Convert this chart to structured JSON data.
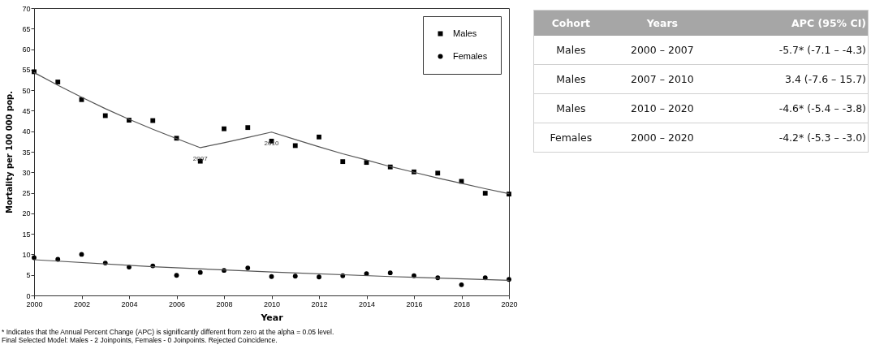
{
  "chart_data": [
    {
      "type": "scatter",
      "xlabel": "Year",
      "ylabel": "Mortality per 100 000 pop.",
      "xlim": [
        2000,
        2020
      ],
      "xticks": [
        2000,
        2002,
        2004,
        2006,
        2008,
        2010,
        2012,
        2014,
        2016,
        2018,
        2020
      ],
      "ylim": [
        0,
        70
      ],
      "yticks": [
        0,
        5,
        10,
        15,
        20,
        25,
        30,
        35,
        40,
        45,
        50,
        55,
        60,
        65,
        70
      ],
      "legend": "top right",
      "x": [
        2000,
        2001,
        2002,
        2003,
        2004,
        2005,
        2006,
        2007,
        2008,
        2009,
        2010,
        2011,
        2012,
        2013,
        2014,
        2015,
        2016,
        2017,
        2018,
        2019,
        2020
      ],
      "series": [
        {
          "name": "Males",
          "color": "#000000",
          "marker": "square",
          "values": [
            54.5,
            52,
            47.7,
            43.8,
            42.7,
            42.6,
            38.3,
            32.7,
            40.6,
            40.9,
            37.6,
            36.5,
            38.6,
            32.6,
            32.4,
            31.3,
            30.1,
            29.8,
            27.8,
            24.9,
            24.7
          ]
        },
        {
          "name": "Females",
          "color": "#000000",
          "marker": "circle",
          "values": [
            9.2,
            8.8,
            10.0,
            7.9,
            6.9,
            7.2,
            4.9,
            5.6,
            6.1,
            6.7,
            4.6,
            4.7,
            4.5,
            4.8,
            5.3,
            5.5,
            4.8,
            4.3,
            2.6,
            4.3,
            3.9
          ]
        },
        {
          "type": "line",
          "color": "#555555",
          "line_style": "solid",
          "marker": "none",
          "x": [
            2000,
            2001,
            2002,
            2003,
            2004,
            2005,
            2006,
            2007,
            2008,
            2009,
            2010,
            2011,
            2012,
            2013,
            2014,
            2015,
            2016,
            2017,
            2018,
            2019,
            2020
          ],
          "values": [
            54.3,
            51.2,
            48.3,
            45.5,
            42.9,
            40.5,
            38.2,
            36.0,
            37.2,
            38.5,
            39.8,
            38.0,
            36.2,
            34.5,
            33.0,
            31.4,
            30.0,
            28.6,
            27.3,
            26.0,
            24.8
          ]
        },
        {
          "type": "line",
          "color": "#555555",
          "line_style": "solid",
          "marker": "none",
          "x": [
            2000,
            2005,
            2010,
            2015,
            2020
          ],
          "values": [
            8.7,
            7.0,
            5.7,
            4.6,
            3.7
          ]
        }
      ],
      "annotations": [
        {
          "text": "2007",
          "x": 2007,
          "y": 36.0
        },
        {
          "text": "2010",
          "x": 2010,
          "y": 39.8
        },
        "* Indicates that the Annual Percent Change (APC) is significantly different from zero at the alpha = 0.05 level.",
        "Final Selected Model: Males - 2 Joinpoints, Females - 0 Joinpoints. Rejected Coincidence."
      ]
    },
    {
      "type": "other",
      "categories": [
        "Cohort",
        "Years",
        "APC (95% CI)"
      ],
      "cell_labels": [
        [
          "Males",
          "2000 – 2007",
          "-5.7* (-7.1 – -4.3)"
        ],
        [
          "Males",
          "2007 – 2010",
          "3.4 (-7.6 – 15.7)"
        ],
        [
          "Males",
          "2010 – 2020",
          "-4.6* (-5.4 – -3.8)"
        ],
        [
          "Females",
          "2000 – 2020",
          "-4.2* (-5.3 – -3.0)"
        ]
      ]
    }
  ]
}
